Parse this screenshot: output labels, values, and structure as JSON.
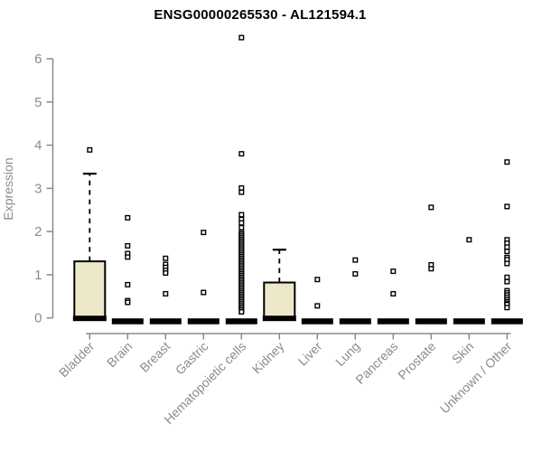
{
  "title": "ENSG00000265530 - AL121594.1",
  "chart_data": {
    "type": "boxplot",
    "title": "ENSG00000265530 - AL121594.1",
    "xlabel": "",
    "ylabel": "Expression",
    "ylim": [
      0,
      6
    ],
    "yticks": [
      0,
      1,
      2,
      3,
      4,
      5,
      6
    ],
    "grid": false,
    "legend": "none",
    "colors": {
      "box_fill": "#EDE8C9",
      "box_stroke": "#000000",
      "point_stroke": "#000000",
      "axis": "#8B8B8B",
      "tick_label": "#8B8B8B",
      "title_color": "#000000"
    },
    "categories": [
      "Bladder",
      "Brain",
      "Breast",
      "Gastric",
      "Hematopoietic cells",
      "Kidney",
      "Liver",
      "Lung",
      "Pancreas",
      "Prostate",
      "Skin",
      "Unknown / Other"
    ],
    "series": [
      {
        "category": "Bladder",
        "box": {
          "q1": 0,
          "median": 0,
          "q3": 1.31,
          "whisker_low": 0,
          "whisker_high": 3.34
        },
        "points": [
          3.89
        ]
      },
      {
        "category": "Brain",
        "box": {
          "q1": 0,
          "median": 0,
          "q3": 0,
          "whisker_low": 0,
          "whisker_high": 0
        },
        "points": [
          2.32,
          1.67,
          1.49,
          1.41,
          0.77,
          0.4,
          0.36
        ]
      },
      {
        "category": "Breast",
        "box": {
          "q1": 0,
          "median": 0,
          "q3": 0,
          "whisker_low": 0,
          "whisker_high": 0
        },
        "points": [
          1.38,
          1.24,
          1.17,
          1.1,
          1.04,
          0.56
        ]
      },
      {
        "category": "Gastric",
        "box": {
          "q1": 0,
          "median": 0,
          "q3": 0,
          "whisker_low": 0,
          "whisker_high": 0
        },
        "points": [
          1.98,
          0.59
        ]
      },
      {
        "category": "Hematopoietic cells",
        "box": {
          "q1": 0,
          "median": 0,
          "q3": 0,
          "whisker_low": 0,
          "whisker_high": 0
        },
        "points": [
          6.49,
          3.8,
          3.01,
          2.91,
          2.39,
          2.28,
          2.2,
          2.09,
          1.98,
          1.94,
          1.9,
          1.86,
          1.82,
          1.78,
          1.74,
          1.7,
          1.66,
          1.62,
          1.58,
          1.54,
          1.5,
          1.46,
          1.42,
          1.38,
          1.34,
          1.3,
          1.26,
          1.22,
          1.18,
          1.14,
          1.1,
          1.06,
          1.02,
          0.98,
          0.94,
          0.9,
          0.86,
          0.82,
          0.78,
          0.74,
          0.7,
          0.66,
          0.62,
          0.58,
          0.54,
          0.5,
          0.46,
          0.42,
          0.38,
          0.34,
          0.3,
          0.26,
          0.22,
          0.18,
          0.14
        ]
      },
      {
        "category": "Kidney",
        "box": {
          "q1": 0,
          "median": 0,
          "q3": 0.82,
          "whisker_low": 0,
          "whisker_high": 1.58
        },
        "points": []
      },
      {
        "category": "Liver",
        "box": {
          "q1": 0,
          "median": 0,
          "q3": 0,
          "whisker_low": 0,
          "whisker_high": 0
        },
        "points": [
          0.89,
          0.28
        ]
      },
      {
        "category": "Lung",
        "box": {
          "q1": 0,
          "median": 0,
          "q3": 0,
          "whisker_low": 0,
          "whisker_high": 0
        },
        "points": [
          1.34,
          1.02
        ]
      },
      {
        "category": "Pancreas",
        "box": {
          "q1": 0,
          "median": 0,
          "q3": 0,
          "whisker_low": 0,
          "whisker_high": 0
        },
        "points": [
          1.08,
          0.56
        ]
      },
      {
        "category": "Prostate",
        "box": {
          "q1": 0,
          "median": 0,
          "q3": 0,
          "whisker_low": 0,
          "whisker_high": 0
        },
        "points": [
          2.56,
          1.23,
          1.14
        ]
      },
      {
        "category": "Skin",
        "box": {
          "q1": 0,
          "median": 0,
          "q3": 0,
          "whisker_low": 0,
          "whisker_high": 0
        },
        "points": [
          1.81
        ]
      },
      {
        "category": "Unknown / Other",
        "box": {
          "q1": 0,
          "median": 0,
          "q3": 0,
          "whisker_low": 0,
          "whisker_high": 0
        },
        "points": [
          3.61,
          2.58,
          1.81,
          1.73,
          1.64,
          1.54,
          1.4,
          1.35,
          1.26,
          0.94,
          0.84,
          0.63,
          0.58,
          0.53,
          0.48,
          0.43,
          0.38,
          0.34,
          0.31,
          0.24
        ]
      }
    ]
  }
}
